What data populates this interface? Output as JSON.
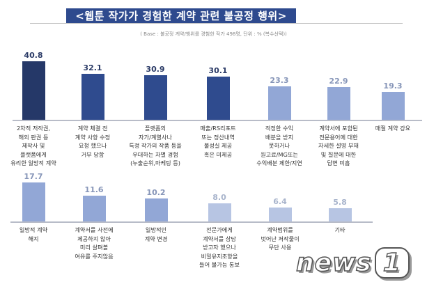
{
  "header": {
    "title": "<웹툰 작가가 경험한 계약 관련 불공정 행위>",
    "subtitle": "( Base : 불공정 계약/행위를 경험한 작가 498명, 단위 : % (복수선택))"
  },
  "logo": {
    "text": "news",
    "digit": "1"
  },
  "colors": {
    "darkest": "#253868",
    "dark": "#2f4b8e",
    "mid": "#92a7d6",
    "light": "#b7c5e3",
    "val_dark": "#2a3a66",
    "val_mid": "#8695b8",
    "val_light": "#a8b4cc"
  },
  "chart_data": {
    "type": "bar",
    "title": "<웹툰 작가가 경험한 계약 관련 불공정 행위>",
    "subtitle": "( Base : 불공정 계약/행위를 경험한 작가 498명, 단위 : % (복수선택))",
    "unit": "%",
    "categories": [
      "2차적 저작권,\n해외 판권 등\n제작사 및\n플랫폼에게\n유리한 일방적 계약",
      "계약 체결 전\n계약 사항 수정\n요청 했으나\n거부 당함",
      "플랫폼의\n자가/계열사나\n특정 작가의 작품 등을\n우대하는 차별 경험\n(누출순위,마케팅 등)",
      "매출/RS리포트\n또는 정산내역\n불성실 제공\n혹은 미제공",
      "적정한 수익\n배분을 받지\n못하거나\n원고료/MG또는\n수익배분 제한/지연",
      "계약서에 포함된\n전문용어에 대한\n자세한 설명 부재\n및 질문에 대한\n답변 미흡",
      "매절 계약 강요",
      "일방적 계약\n해지",
      "계약서를 사전에\n제공하지 않아\n미리 살펴볼\n여유를 주지않음",
      "일방적인\n계약 변경",
      "전문가에게\n계약서를 상담\n받고자 했으나\n비밀유지조항을\n들어 불가능 통보",
      "계약범위를\n벗어난 저작물이\n무단 사용",
      "기타"
    ],
    "values": [
      40.8,
      32.1,
      30.9,
      30.1,
      23.3,
      22.9,
      19.3,
      17.7,
      11.6,
      10.2,
      8.0,
      6.4,
      5.8
    ],
    "value_labels": [
      "40.8",
      "32.1",
      "30.9",
      "30.1",
      "23.3",
      "22.9",
      "19.3",
      "17.7",
      "11.6",
      "10.2",
      "8.0",
      "6.4",
      "5.8"
    ],
    "tones": [
      "darkest",
      "dark",
      "dark",
      "dark",
      "mid",
      "mid",
      "mid",
      "mid",
      "mid",
      "mid",
      "light",
      "light",
      "light"
    ],
    "layout": {
      "rows": 2,
      "row1_count": 7,
      "row2_count": 6,
      "grid": false,
      "legend": "none"
    }
  }
}
